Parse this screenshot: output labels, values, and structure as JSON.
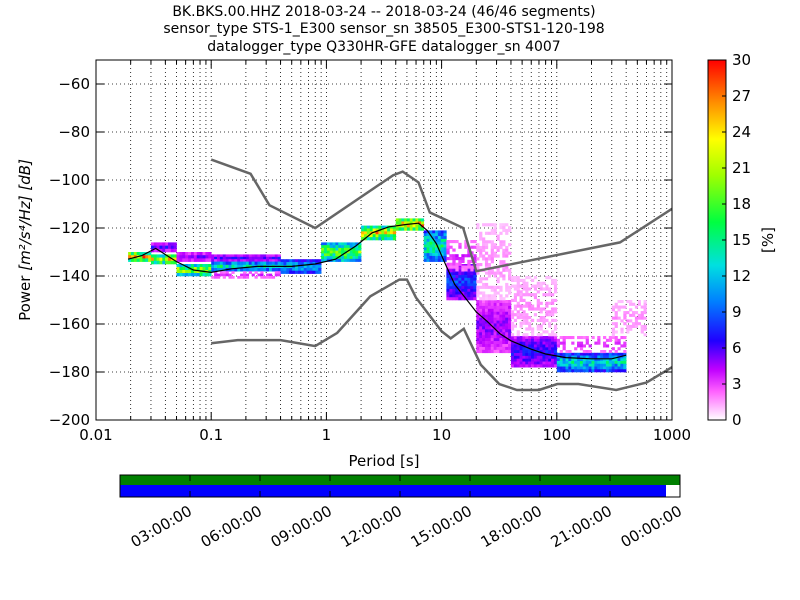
{
  "chart_data": {
    "type": "heatmap",
    "title_lines": [
      "BK.BKS.00.HHZ   2018-03-24 -- 2018-03-24  (46/46 segments)",
      "sensor_type STS-1_E300 sensor_sn 38505_E300-STS1-120-198",
      "datalogger_type Q330HR-GFE datalogger_sn 4007"
    ],
    "xlabel": "Period [s]",
    "ylabel_text": "Power",
    "ylabel_units": "[m²/s⁴/Hz] [dB]",
    "x_scale": "log",
    "xlim": [
      0.01,
      1000
    ],
    "ylim": [
      -200,
      -50
    ],
    "x_ticks": [
      {
        "value": 0.01,
        "label": "0.01"
      },
      {
        "value": 0.1,
        "label": "0.1"
      },
      {
        "value": 1,
        "label": "1"
      },
      {
        "value": 10,
        "label": "10"
      },
      {
        "value": 100,
        "label": "100"
      },
      {
        "value": 1000,
        "label": "1000"
      }
    ],
    "y_ticks": [
      {
        "value": -60,
        "label": "−60"
      },
      {
        "value": -80,
        "label": "−80"
      },
      {
        "value": -100,
        "label": "−100"
      },
      {
        "value": -120,
        "label": "−120"
      },
      {
        "value": -140,
        "label": "−140"
      },
      {
        "value": -160,
        "label": "−160"
      },
      {
        "value": -180,
        "label": "−180"
      },
      {
        "value": -200,
        "label": "−200"
      }
    ],
    "grid": true,
    "colorbar": {
      "label": "[%]",
      "range": [
        0,
        30
      ],
      "ticks": [
        {
          "value": 0,
          "label": "0"
        },
        {
          "value": 3,
          "label": "3"
        },
        {
          "value": 6,
          "label": "6"
        },
        {
          "value": 9,
          "label": "9"
        },
        {
          "value": 12,
          "label": "12"
        },
        {
          "value": 15,
          "label": "15"
        },
        {
          "value": 18,
          "label": "18"
        },
        {
          "value": 21,
          "label": "21"
        },
        {
          "value": 24,
          "label": "24"
        },
        {
          "value": 27,
          "label": "27"
        },
        {
          "value": 30,
          "label": "30"
        }
      ]
    },
    "noise_models": [
      {
        "label_hidden": true,
        "points": [
          [
            0.1,
            -91.5
          ],
          [
            0.22,
            -97.4
          ],
          [
            0.32,
            -110.5
          ],
          [
            0.8,
            -120
          ],
          [
            3.8,
            -98
          ],
          [
            4.6,
            -96.5
          ],
          [
            6.3,
            -101
          ],
          [
            7.9,
            -113.5
          ],
          [
            15.4,
            -120
          ],
          [
            20,
            -138
          ],
          [
            354,
            -126
          ],
          [
            1000,
            -112
          ]
        ]
      },
      {
        "label_hidden": true,
        "points": [
          [
            0.1,
            -168
          ],
          [
            0.17,
            -166.7
          ],
          [
            0.4,
            -166.7
          ],
          [
            0.8,
            -169.2
          ],
          [
            1.24,
            -163.7
          ],
          [
            2.4,
            -148.5
          ],
          [
            4.3,
            -141.5
          ],
          [
            5.0,
            -141.5
          ],
          [
            6.0,
            -149
          ],
          [
            10,
            -163
          ],
          [
            12,
            -166
          ],
          [
            15.6,
            -162
          ],
          [
            21.9,
            -177
          ],
          [
            31.6,
            -185
          ],
          [
            45,
            -187.5
          ],
          [
            70,
            -187.5
          ],
          [
            101,
            -185
          ],
          [
            154,
            -185
          ],
          [
            328,
            -187.5
          ],
          [
            600,
            -184.4
          ],
          [
            1000,
            -178
          ]
        ]
      }
    ],
    "mean_curve": [
      [
        0.019,
        -133
      ],
      [
        0.025,
        -131.5
      ],
      [
        0.033,
        -128.5
      ],
      [
        0.05,
        -134
      ],
      [
        0.07,
        -137.5
      ],
      [
        0.1,
        -138.5
      ],
      [
        0.15,
        -137
      ],
      [
        0.25,
        -136
      ],
      [
        0.5,
        -136
      ],
      [
        0.8,
        -135
      ],
      [
        1.2,
        -133
      ],
      [
        1.8,
        -127.5
      ],
      [
        2.5,
        -122
      ],
      [
        3.5,
        -119.5
      ],
      [
        5,
        -118.5
      ],
      [
        6.3,
        -118
      ],
      [
        7.5,
        -121
      ],
      [
        9,
        -126.5
      ],
      [
        11,
        -136
      ],
      [
        13,
        -143.5
      ],
      [
        16,
        -149
      ],
      [
        20,
        -155
      ],
      [
        25,
        -159
      ],
      [
        32,
        -164
      ],
      [
        40,
        -167
      ],
      [
        60,
        -170.5
      ],
      [
        80,
        -172.5
      ],
      [
        120,
        -174
      ],
      [
        200,
        -174.5
      ],
      [
        300,
        -174.5
      ],
      [
        400,
        -173
      ]
    ],
    "pdf_bands": [
      {
        "x": [
          0.019,
          0.03
        ],
        "y": [
          -134,
          -130
        ],
        "pct": 24
      },
      {
        "x": [
          0.03,
          0.05
        ],
        "y": [
          -130,
          -126
        ],
        "pct": 6
      },
      {
        "x": [
          0.03,
          0.05
        ],
        "y": [
          -135,
          -131
        ],
        "pct": 22
      },
      {
        "x": [
          0.05,
          0.1
        ],
        "y": [
          -134,
          -130
        ],
        "pct": 5
      },
      {
        "x": [
          0.05,
          0.1
        ],
        "y": [
          -140,
          -135
        ],
        "pct": 20
      },
      {
        "x": [
          0.1,
          0.4
        ],
        "y": [
          -134,
          -131
        ],
        "pct": 6
      },
      {
        "x": [
          0.1,
          0.4
        ],
        "y": [
          -138,
          -134
        ],
        "pct": 14
      },
      {
        "x": [
          0.1,
          0.4
        ],
        "y": [
          -141,
          -138
        ],
        "pct": 4
      },
      {
        "x": [
          0.4,
          0.9
        ],
        "y": [
          -139,
          -133
        ],
        "pct": 12
      },
      {
        "x": [
          0.9,
          2
        ],
        "y": [
          -134,
          -126
        ],
        "pct": 19
      },
      {
        "x": [
          2,
          4
        ],
        "y": [
          -125,
          -119
        ],
        "pct": 23
      },
      {
        "x": [
          4,
          7
        ],
        "y": [
          -121,
          -116
        ],
        "pct": 26
      },
      {
        "x": [
          7,
          11
        ],
        "y": [
          -134,
          -121
        ],
        "pct": 15
      },
      {
        "x": [
          11,
          20
        ],
        "y": [
          -150,
          -135
        ],
        "pct": 8
      },
      {
        "x": [
          11,
          20
        ],
        "y": [
          -138,
          -125
        ],
        "pct": 4
      },
      {
        "x": [
          20,
          40
        ],
        "y": [
          -172,
          -150
        ],
        "pct": 5
      },
      {
        "x": [
          20,
          40
        ],
        "y": [
          -150,
          -118
        ],
        "pct": 2
      },
      {
        "x": [
          40,
          100
        ],
        "y": [
          -178,
          -165
        ],
        "pct": 7
      },
      {
        "x": [
          40,
          100
        ],
        "y": [
          -165,
          -140
        ],
        "pct": 2
      },
      {
        "x": [
          100,
          400
        ],
        "y": [
          -180,
          -172
        ],
        "pct": 13
      },
      {
        "x": [
          100,
          400
        ],
        "y": [
          -172,
          -165
        ],
        "pct": 4
      },
      {
        "x": [
          300,
          600
        ],
        "y": [
          -165,
          -150
        ],
        "pct": 2
      }
    ]
  },
  "timeline": {
    "coverage_fraction": 0.975,
    "ticks": [
      "03:00:00",
      "06:00:00",
      "09:00:00",
      "12:00:00",
      "15:00:00",
      "18:00:00",
      "21:00:00",
      "00:00:00"
    ],
    "colors": {
      "data": "#0000ff",
      "segments": "#008000"
    }
  }
}
